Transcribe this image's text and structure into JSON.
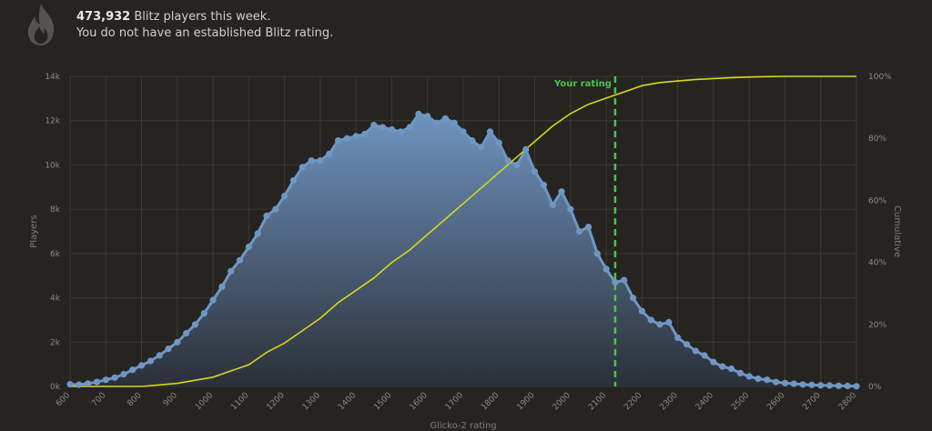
{
  "header": {
    "player_count": "473,932",
    "players_text": " Blitz players this week.",
    "rating_status": "You do not have an established Blitz rating."
  },
  "icons": {
    "header_icon": "flame-icon"
  },
  "colors": {
    "background": "#262421",
    "distribution": "#6f97c4",
    "distribution_fill_top": "#6f93bf",
    "distribution_fill_bottom": "#2b3038",
    "cumulative": "#d7d719",
    "your_rating": "#4cc44c",
    "grid": "#3d3b38"
  },
  "chart_data": {
    "type": "area",
    "xlabel": "Glicko-2 rating",
    "ylabel_left": "Players",
    "ylabel_right": "Cumulative",
    "xlim": [
      600,
      2800
    ],
    "ylim_left": [
      0,
      14000
    ],
    "ylim_right": [
      0,
      100
    ],
    "x_ticks": [
      600,
      700,
      800,
      900,
      1000,
      1100,
      1200,
      1300,
      1400,
      1500,
      1600,
      1700,
      1800,
      1900,
      2000,
      2100,
      2200,
      2300,
      2400,
      2500,
      2600,
      2700,
      2800
    ],
    "y_ticks_left": [
      0,
      2000,
      4000,
      6000,
      8000,
      10000,
      12000,
      14000
    ],
    "y_tick_labels_left": [
      "0k",
      "2k",
      "4k",
      "6k",
      "8k",
      "10k",
      "12k",
      "14k"
    ],
    "y_ticks_right": [
      0,
      20,
      40,
      60,
      80,
      100
    ],
    "y_tick_labels_right": [
      "0%",
      "20%",
      "40%",
      "60%",
      "80%",
      "100%"
    ],
    "grid": true,
    "your_rating": {
      "label": "Your rating",
      "x": 2125
    },
    "series": [
      {
        "name": "Players",
        "axis": "left",
        "x": [
          600,
          625,
          650,
          675,
          700,
          725,
          750,
          775,
          800,
          825,
          850,
          875,
          900,
          925,
          950,
          975,
          1000,
          1025,
          1050,
          1075,
          1100,
          1125,
          1150,
          1175,
          1200,
          1225,
          1250,
          1275,
          1300,
          1325,
          1350,
          1375,
          1400,
          1425,
          1450,
          1475,
          1500,
          1525,
          1550,
          1575,
          1600,
          1625,
          1650,
          1675,
          1700,
          1725,
          1750,
          1775,
          1800,
          1825,
          1850,
          1875,
          1900,
          1925,
          1950,
          1975,
          2000,
          2025,
          2050,
          2075,
          2100,
          2125,
          2150,
          2175,
          2200,
          2225,
          2250,
          2275,
          2300,
          2325,
          2350,
          2375,
          2400,
          2425,
          2450,
          2475,
          2500,
          2525,
          2550,
          2575,
          2600,
          2625,
          2650,
          2675,
          2700,
          2725,
          2750,
          2775,
          2800
        ],
        "values": [
          100,
          80,
          130,
          200,
          300,
          400,
          550,
          750,
          950,
          1150,
          1400,
          1700,
          2000,
          2400,
          2800,
          3300,
          3900,
          4500,
          5200,
          5700,
          6300,
          6900,
          7700,
          8000,
          8600,
          9300,
          9900,
          10200,
          10200,
          10500,
          11100,
          11200,
          11300,
          11400,
          11800,
          11700,
          11600,
          11500,
          11700,
          12300,
          12200,
          11900,
          12100,
          11900,
          11500,
          11100,
          10800,
          11500,
          11000,
          10200,
          10000,
          10700,
          9700,
          9100,
          8200,
          8800,
          8000,
          7000,
          7200,
          6000,
          5300,
          4700,
          4800,
          4000,
          3400,
          3000,
          2800,
          2900,
          2200,
          1900,
          1600,
          1400,
          1100,
          900,
          800,
          600,
          450,
          350,
          300,
          200,
          150,
          120,
          90,
          70,
          50,
          40,
          30,
          20,
          10
        ]
      },
      {
        "name": "Cumulative",
        "axis": "right",
        "x": [
          600,
          650,
          700,
          750,
          800,
          850,
          900,
          950,
          1000,
          1050,
          1100,
          1150,
          1200,
          1250,
          1300,
          1350,
          1400,
          1450,
          1500,
          1550,
          1600,
          1650,
          1700,
          1750,
          1800,
          1850,
          1900,
          1950,
          2000,
          2050,
          2100,
          2150,
          2200,
          2250,
          2300,
          2350,
          2400,
          2450,
          2500,
          2550,
          2600,
          2650,
          2700,
          2750,
          2800
        ],
        "values": [
          0,
          0,
          0,
          0,
          0,
          0.5,
          1,
          2,
          3,
          5,
          7,
          11,
          14,
          18,
          22,
          27,
          31,
          35,
          40,
          44,
          49,
          54,
          59,
          64,
          69,
          74,
          79,
          84,
          88,
          91,
          93,
          95,
          97,
          98,
          98.5,
          99,
          99.3,
          99.6,
          99.8,
          99.9,
          100,
          100,
          100,
          100,
          100
        ]
      }
    ]
  }
}
